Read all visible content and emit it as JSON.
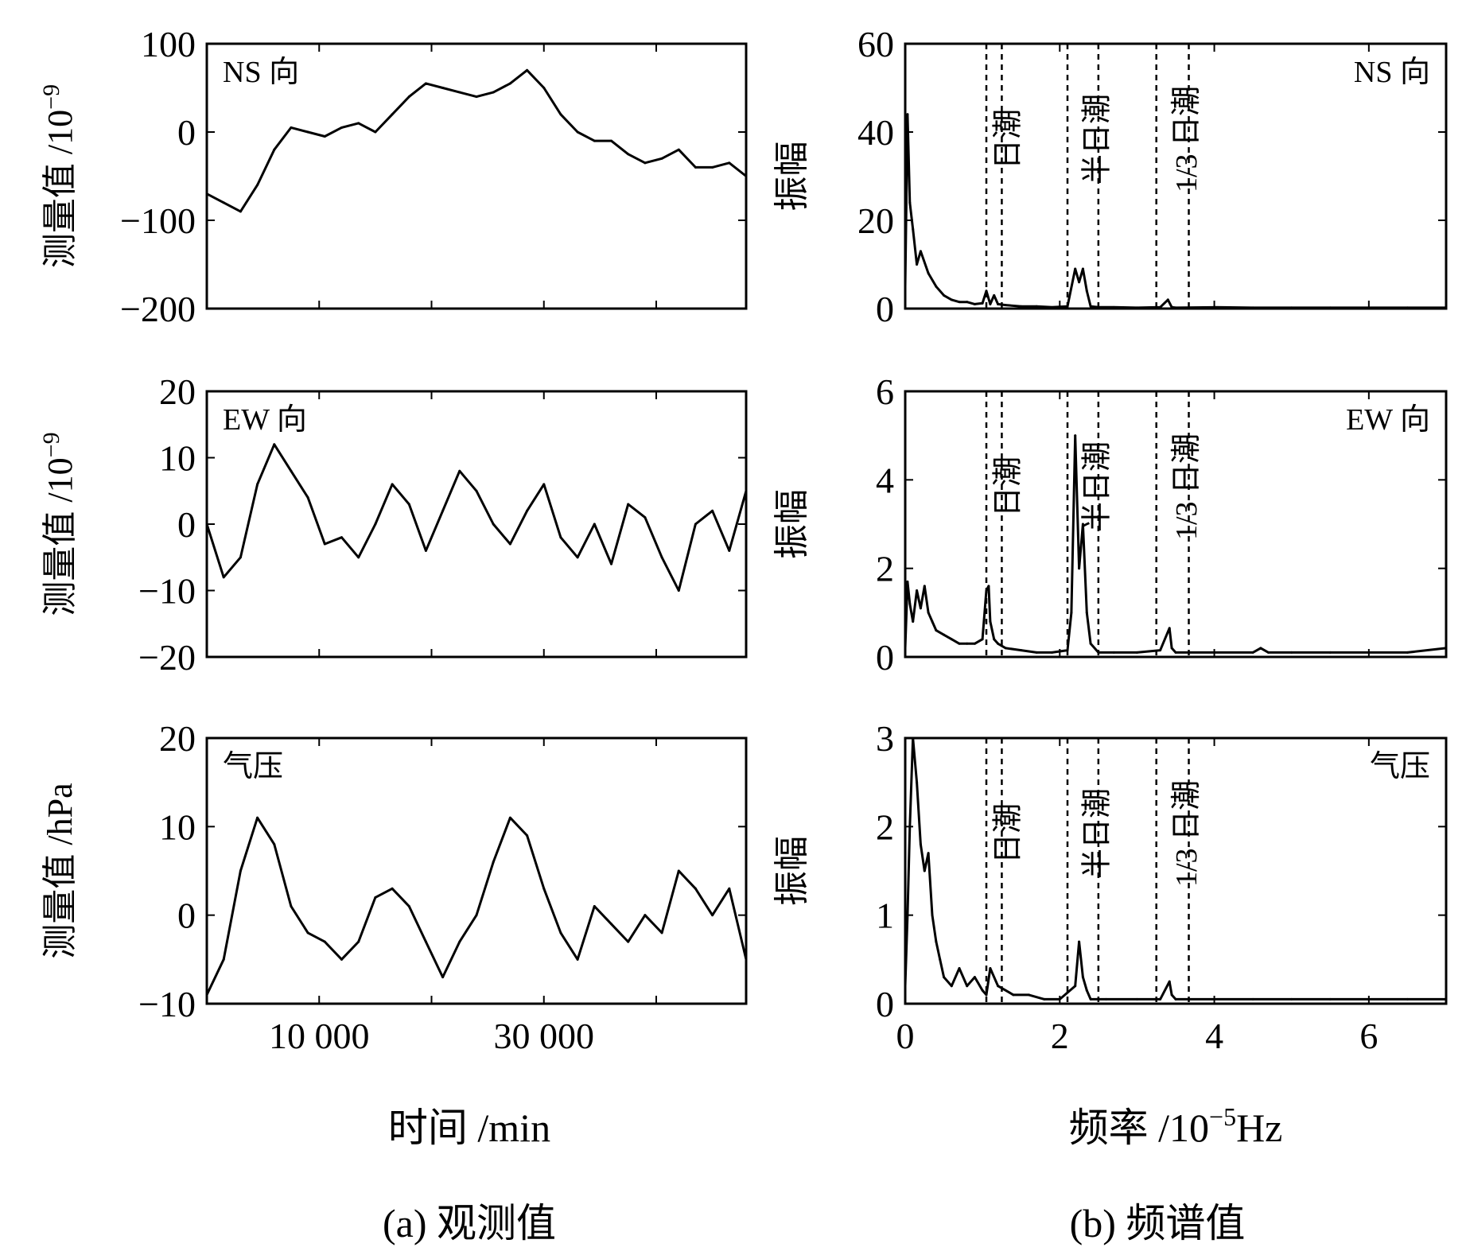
{
  "colors": {
    "line": "#000000",
    "background": "#ffffff"
  },
  "captions": {
    "left": "(a) 观测值",
    "right": "(b) 频谱值"
  },
  "chart_data": [
    {
      "type": "line",
      "panel": "a1",
      "tag": "NS 向",
      "ylabel_main": "测量值 /10",
      "ylabel_sup": "−9",
      "ylim": [
        -200,
        100
      ],
      "yticks": [
        "100",
        "0",
        "−100",
        "−200"
      ],
      "xlim": [
        0,
        48000
      ],
      "xticks": [],
      "series": [
        {
          "x": [
            0,
            1500,
            3000,
            4500,
            6000,
            7500,
            9000,
            10500,
            12000,
            13500,
            15000,
            16500,
            18000,
            19500,
            21000,
            22500,
            24000,
            25500,
            27000,
            28500,
            30000,
            31500,
            33000,
            34500,
            36000,
            37500,
            39000,
            40500,
            42000,
            43500,
            45000,
            46500,
            48000
          ],
          "values": [
            -70,
            -80,
            -90,
            -60,
            -20,
            5,
            0,
            -5,
            5,
            10,
            0,
            20,
            40,
            55,
            50,
            45,
            40,
            45,
            55,
            70,
            50,
            20,
            0,
            -10,
            -10,
            -25,
            -35,
            -30,
            -20,
            -40,
            -40,
            -35,
            -50
          ]
        }
      ]
    },
    {
      "type": "line",
      "panel": "a2",
      "tag": "EW 向",
      "ylabel_main": "测量值 /10",
      "ylabel_sup": "−9",
      "ylim": [
        -20,
        20
      ],
      "yticks": [
        "20",
        "10",
        "0",
        "−10",
        "−20"
      ],
      "xlim": [
        0,
        48000
      ],
      "xticks": [],
      "series": [
        {
          "x": [
            0,
            1500,
            3000,
            4500,
            6000,
            7500,
            9000,
            10500,
            12000,
            13500,
            15000,
            16500,
            18000,
            19500,
            21000,
            22500,
            24000,
            25500,
            27000,
            28500,
            30000,
            31500,
            33000,
            34500,
            36000,
            37500,
            39000,
            40500,
            42000,
            43500,
            45000,
            46500,
            48000
          ],
          "values": [
            0,
            -8,
            -5,
            6,
            12,
            8,
            4,
            -3,
            -2,
            -5,
            0,
            6,
            3,
            -4,
            2,
            8,
            5,
            0,
            -3,
            2,
            6,
            -2,
            -5,
            0,
            -6,
            3,
            1,
            -5,
            -10,
            0,
            2,
            -4,
            5
          ]
        }
      ]
    },
    {
      "type": "line",
      "panel": "a3",
      "tag": "气压",
      "ylabel_main": "测量值 /hPa",
      "ylabel_sup": "",
      "ylim": [
        -10,
        20
      ],
      "yticks": [
        "20",
        "10",
        "0",
        "−10"
      ],
      "xlim": [
        0,
        48000
      ],
      "xticks": [
        {
          "value": 10000,
          "label": "10 000"
        },
        {
          "value": 30000,
          "label": "30 000"
        }
      ],
      "series": [
        {
          "x": [
            0,
            1500,
            3000,
            4500,
            6000,
            7500,
            9000,
            10500,
            12000,
            13500,
            15000,
            16500,
            18000,
            19500,
            21000,
            22500,
            24000,
            25500,
            27000,
            28500,
            30000,
            31500,
            33000,
            34500,
            36000,
            37500,
            39000,
            40500,
            42000,
            43500,
            45000,
            46500,
            48000
          ],
          "values": [
            -9,
            -5,
            5,
            11,
            8,
            1,
            -2,
            -3,
            -5,
            -3,
            2,
            3,
            1,
            -3,
            -7,
            -3,
            0,
            6,
            11,
            9,
            3,
            -2,
            -5,
            1,
            -1,
            -3,
            0,
            -2,
            5,
            3,
            0,
            3,
            -5
          ]
        }
      ]
    },
    {
      "type": "line",
      "panel": "b1",
      "tag": "NS 向",
      "ylabel_main": "振幅",
      "ylim": [
        0,
        60
      ],
      "yticks": [
        "60",
        "40",
        "20",
        "0"
      ],
      "xlim": [
        0,
        7
      ],
      "xticks": [],
      "bands": [
        {
          "x1": 1.05,
          "x2": 1.25,
          "label": "日潮"
        },
        {
          "x1": 2.1,
          "x2": 2.5,
          "label": "半日潮"
        },
        {
          "x1": 3.25,
          "x2": 3.67,
          "label": "1/3 日潮"
        }
      ],
      "series": [
        {
          "x": [
            0,
            0.03,
            0.06,
            0.1,
            0.15,
            0.2,
            0.3,
            0.4,
            0.5,
            0.6,
            0.7,
            0.8,
            0.9,
            1.0,
            1.05,
            1.1,
            1.15,
            1.2,
            1.3,
            1.5,
            1.7,
            1.9,
            2.1,
            2.2,
            2.25,
            2.3,
            2.35,
            2.4,
            2.5,
            2.7,
            3.0,
            3.3,
            3.4,
            3.45,
            3.5,
            4.0,
            4.5,
            5.0,
            5.5,
            6.0,
            6.5,
            7.0
          ],
          "values": [
            5,
            44,
            24,
            18,
            10,
            13,
            8,
            5,
            3,
            2,
            1.5,
            1.5,
            1,
            1.2,
            4,
            1,
            3,
            1,
            0.8,
            0.5,
            0.5,
            0.3,
            0.5,
            9,
            6,
            9,
            4,
            0.5,
            0.3,
            0.3,
            0.2,
            0.3,
            2,
            0.3,
            0.2,
            0.3,
            0.2,
            0.2,
            0.2,
            0.2,
            0.2,
            0.2
          ]
        }
      ]
    },
    {
      "type": "line",
      "panel": "b2",
      "tag": "EW 向",
      "ylabel_main": "振幅",
      "ylim": [
        0,
        6
      ],
      "yticks": [
        "6",
        "4",
        "2",
        "0"
      ],
      "xlim": [
        0,
        7
      ],
      "xticks": [],
      "bands": [
        {
          "x1": 1.05,
          "x2": 1.25,
          "label": "日潮"
        },
        {
          "x1": 2.1,
          "x2": 2.5,
          "label": "半日潮"
        },
        {
          "x1": 3.25,
          "x2": 3.67,
          "label": "1/3 日潮"
        }
      ],
      "series": [
        {
          "x": [
            0,
            0.03,
            0.06,
            0.1,
            0.15,
            0.2,
            0.25,
            0.3,
            0.35,
            0.4,
            0.5,
            0.6,
            0.7,
            0.8,
            0.9,
            1.0,
            1.05,
            1.08,
            1.1,
            1.15,
            1.2,
            1.3,
            1.5,
            1.7,
            1.9,
            2.1,
            2.15,
            2.2,
            2.25,
            2.3,
            2.35,
            2.4,
            2.5,
            2.7,
            3.0,
            3.3,
            3.42,
            3.45,
            3.5,
            4.0,
            4.5,
            4.6,
            4.7,
            5.0,
            5.5,
            6.0,
            6.5,
            7.0
          ],
          "values": [
            0.2,
            1.7,
            1.2,
            0.8,
            1.5,
            1.1,
            1.6,
            1.0,
            0.8,
            0.6,
            0.5,
            0.4,
            0.3,
            0.3,
            0.3,
            0.4,
            1.5,
            1.6,
            0.8,
            0.4,
            0.3,
            0.2,
            0.15,
            0.1,
            0.1,
            0.15,
            1.0,
            5.0,
            2.0,
            3.0,
            1.0,
            0.3,
            0.1,
            0.1,
            0.1,
            0.15,
            0.65,
            0.2,
            0.1,
            0.1,
            0.1,
            0.2,
            0.1,
            0.1,
            0.1,
            0.1,
            0.1,
            0.2
          ]
        }
      ]
    },
    {
      "type": "line",
      "panel": "b3",
      "tag": "气压",
      "ylabel_main": "振幅",
      "ylim": [
        0,
        3
      ],
      "yticks": [
        "3",
        "2",
        "1",
        "0"
      ],
      "xlim": [
        0,
        7
      ],
      "xticks": [
        {
          "value": 0,
          "label": "0"
        },
        {
          "value": 2,
          "label": "2"
        },
        {
          "value": 4,
          "label": "4"
        },
        {
          "value": 6,
          "label": "6"
        }
      ],
      "xlabel_main": "频率 /10",
      "xlabel_sup": "−5",
      "xlabel_unit": "Hz",
      "bands": [
        {
          "x1": 1.05,
          "x2": 1.25,
          "label": "日潮"
        },
        {
          "x1": 2.1,
          "x2": 2.5,
          "label": "半日潮"
        },
        {
          "x1": 3.25,
          "x2": 3.67,
          "label": "1/3 日潮"
        }
      ],
      "series": [
        {
          "x": [
            0,
            0.03,
            0.06,
            0.1,
            0.15,
            0.2,
            0.25,
            0.3,
            0.35,
            0.4,
            0.45,
            0.5,
            0.6,
            0.7,
            0.8,
            0.9,
            1.0,
            1.05,
            1.1,
            1.2,
            1.4,
            1.6,
            1.8,
            2.0,
            2.2,
            2.25,
            2.3,
            2.35,
            2.4,
            2.6,
            3.0,
            3.3,
            3.42,
            3.45,
            3.5,
            4.0,
            4.5,
            5.0,
            5.5,
            6.0,
            6.5,
            7.0
          ],
          "values": [
            0.2,
            1.0,
            2.0,
            3.0,
            2.5,
            1.8,
            1.5,
            1.7,
            1.0,
            0.7,
            0.5,
            0.3,
            0.2,
            0.4,
            0.2,
            0.3,
            0.15,
            0.1,
            0.4,
            0.2,
            0.1,
            0.1,
            0.05,
            0.05,
            0.2,
            0.7,
            0.3,
            0.15,
            0.05,
            0.05,
            0.05,
            0.05,
            0.25,
            0.1,
            0.05,
            0.05,
            0.05,
            0.05,
            0.05,
            0.05,
            0.05,
            0.05
          ]
        }
      ]
    }
  ],
  "bottom_labels": {
    "left_x": "时间 /min"
  }
}
